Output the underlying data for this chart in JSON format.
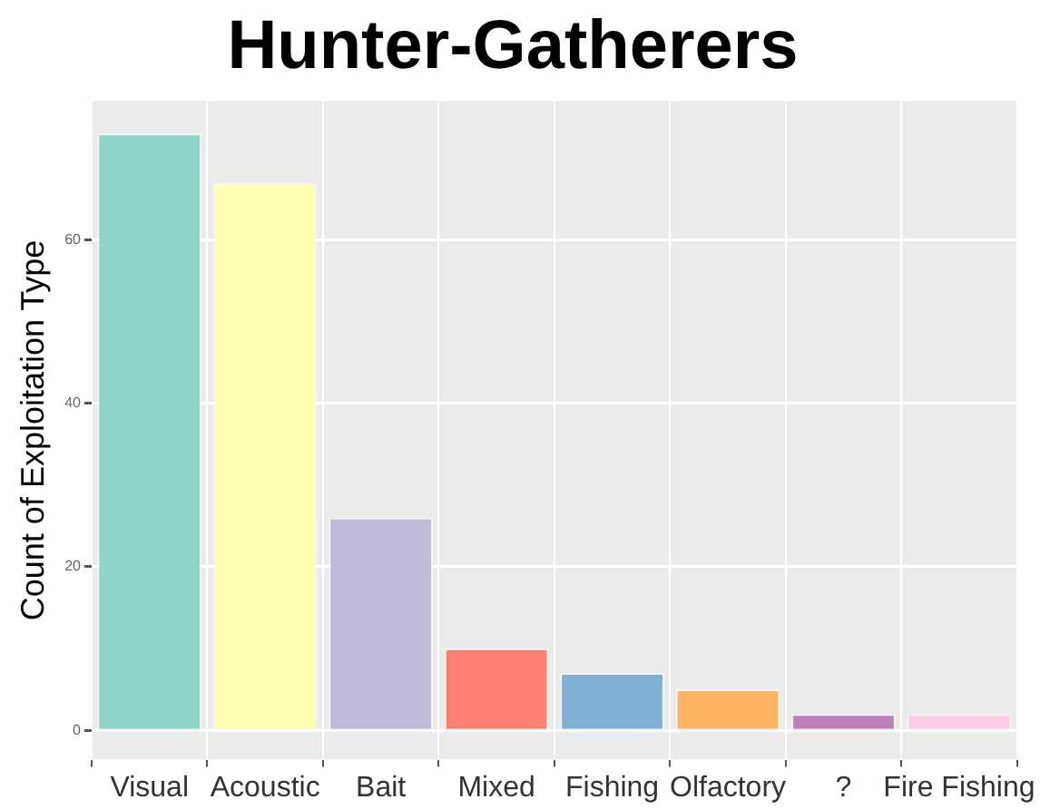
{
  "chart_data": {
    "type": "bar",
    "title": "Hunter-Gatherers",
    "ylabel": "Count of Exploitation Type",
    "categories": [
      "Visual",
      "Acoustic",
      "Bait",
      "Mixed",
      "Fishing",
      "Olfactory",
      "?",
      "Fire Fishing"
    ],
    "values": [
      73,
      67,
      26,
      10,
      7,
      5,
      2,
      2
    ],
    "colors": [
      "#8dd3c7",
      "#ffffb3",
      "#bebada",
      "#fb8072",
      "#80b1d3",
      "#fdb462",
      "#bc80bd",
      "#fccde5"
    ],
    "ylim": [
      -3.6,
      77
    ],
    "yticks": [
      0,
      20,
      40,
      60
    ],
    "grid": true,
    "legend": false
  }
}
